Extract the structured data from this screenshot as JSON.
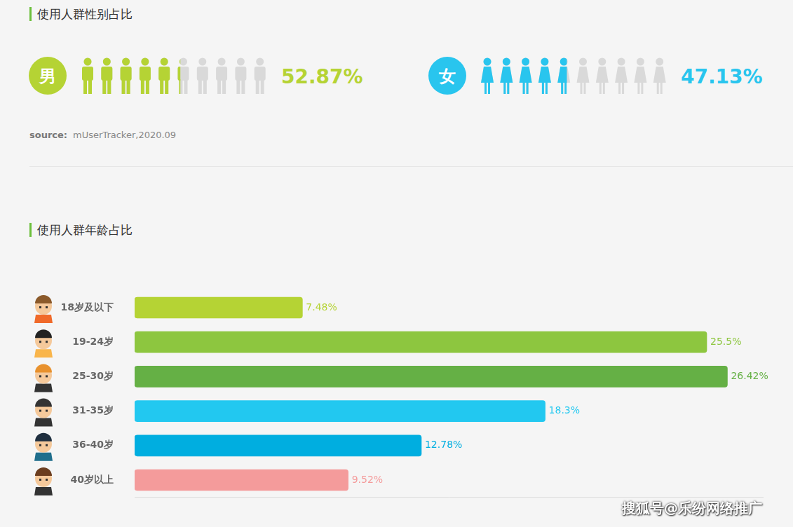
{
  "gender": {
    "title": "使用人群性别占比",
    "items": [
      {
        "label": "男",
        "value": 52.87,
        "value_label": "52.87%",
        "color": "#b5d334"
      },
      {
        "label": "女",
        "value": 47.13,
        "value_label": "47.13%",
        "color": "#29c5ee"
      }
    ],
    "source": {
      "label": "source:",
      "text": "mUserTracker,2020.09"
    }
  },
  "chart_data": {
    "type": "bar",
    "orientation": "horizontal",
    "title": "使用人群年龄占比",
    "categories": [
      "18岁及以下",
      "19-24岁",
      "25-30岁",
      "31-35岁",
      "36-40岁",
      "40岁以上"
    ],
    "values": [
      7.48,
      25.5,
      26.42,
      18.3,
      12.78,
      9.52
    ],
    "value_labels": [
      "7.48%",
      "25.5%",
      "26.42%",
      "18.3%",
      "12.78%",
      "9.52%"
    ],
    "colors": [
      "#b5d334",
      "#8dc63f",
      "#65b045",
      "#22c8f0",
      "#00aee0",
      "#f49b9b"
    ],
    "xlim": [
      0,
      28
    ],
    "grid": false,
    "data_labels": true,
    "tick_labels": "y"
  },
  "watermark": "搜狐号@乐纷网络推广"
}
